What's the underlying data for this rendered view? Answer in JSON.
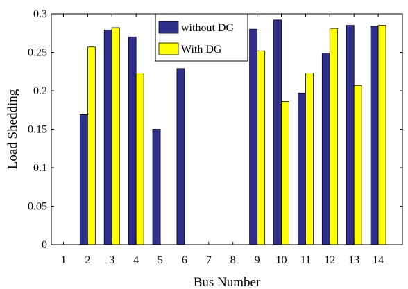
{
  "chart_data": {
    "type": "bar",
    "title": "",
    "xlabel": "Bus Number",
    "ylabel": "Load Shedding",
    "categories": [
      "1",
      "2",
      "3",
      "4",
      "5",
      "6",
      "7",
      "8",
      "9",
      "10",
      "11",
      "12",
      "13",
      "14"
    ],
    "ylim": [
      0,
      0.3
    ],
    "yticks": [
      "0",
      "0.05",
      "0.1",
      "0.15",
      "0.2",
      "0.25",
      "0.3"
    ],
    "yticks_values": [
      0,
      0.05,
      0.1,
      0.15,
      0.2,
      0.25,
      0.3
    ],
    "grid": false,
    "legend_position": "top-center",
    "series": [
      {
        "name": "without DG",
        "color": "#2e2e8c",
        "values": [
          0,
          0.169,
          0.279,
          0.27,
          0.15,
          0.229,
          0,
          0,
          0.28,
          0.292,
          0.197,
          0.249,
          0.285,
          0.284
        ]
      },
      {
        "name": "With DG",
        "color": "#ffff00",
        "values": [
          0,
          0.257,
          0.282,
          0.223,
          0,
          0,
          0,
          0,
          0.252,
          0.186,
          0.223,
          0.281,
          0.207,
          0.285
        ]
      }
    ]
  }
}
